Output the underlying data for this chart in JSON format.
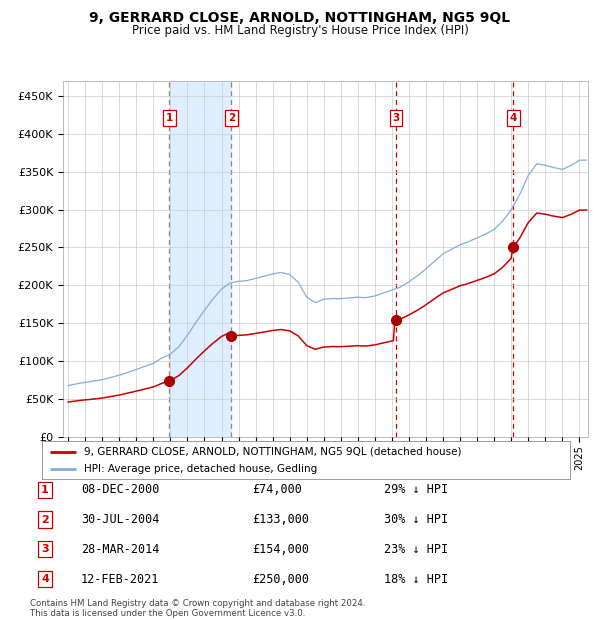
{
  "title": "9, GERRARD CLOSE, ARNOLD, NOTTINGHAM, NG5 9QL",
  "subtitle": "Price paid vs. HM Land Registry's House Price Index (HPI)",
  "ylim": [
    0,
    470000
  ],
  "yticks": [
    0,
    50000,
    100000,
    150000,
    200000,
    250000,
    300000,
    350000,
    400000,
    450000
  ],
  "ytick_labels": [
    "£0",
    "£50K",
    "£100K",
    "£150K",
    "£200K",
    "£250K",
    "£300K",
    "£350K",
    "£400K",
    "£450K"
  ],
  "xlim_start": 1994.7,
  "xlim_end": 2025.5,
  "sale_dates_decimal": [
    2000.94,
    2004.58,
    2014.24,
    2021.12
  ],
  "sale_prices": [
    74000,
    133000,
    154000,
    250000
  ],
  "sale_labels": [
    "1",
    "2",
    "3",
    "4"
  ],
  "sale_label_color": "#cc0000",
  "sale_dot_color": "#aa0000",
  "shaded_region": [
    2000.94,
    2004.58
  ],
  "shaded_color": "#ddeeff",
  "legend_red_label": "9, GERRARD CLOSE, ARNOLD, NOTTINGHAM, NG5 9QL (detached house)",
  "legend_blue_label": "HPI: Average price, detached house, Gedling",
  "table_rows": [
    [
      "1",
      "08-DEC-2000",
      "£74,000",
      "29% ↓ HPI"
    ],
    [
      "2",
      "30-JUL-2004",
      "£133,000",
      "30% ↓ HPI"
    ],
    [
      "3",
      "28-MAR-2014",
      "£154,000",
      "23% ↓ HPI"
    ],
    [
      "4",
      "12-FEB-2021",
      "£250,000",
      "18% ↓ HPI"
    ]
  ],
  "footer": "Contains HM Land Registry data © Crown copyright and database right 2024.\nThis data is licensed under the Open Government Licence v3.0.",
  "background_color": "#ffffff",
  "grid_color": "#cccccc",
  "red_line_color": "#cc0000",
  "blue_line_color": "#88aadd",
  "vline_colors_12": "#888888",
  "vline_colors_34": "#cc0000"
}
